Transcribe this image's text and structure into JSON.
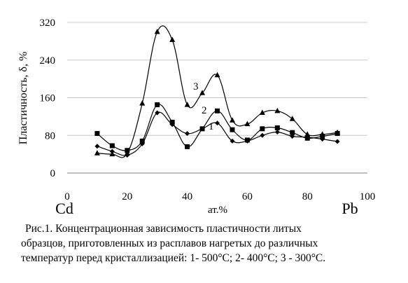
{
  "chart_data": {
    "type": "line",
    "ylabel": "Пластичность, δ, %",
    "xlabel": "ат.%",
    "element_left": "Cd",
    "element_right": "Pb",
    "xlim": [
      0,
      100
    ],
    "ylim": [
      0,
      320
    ],
    "xticks": [
      0,
      20,
      40,
      60,
      80,
      100
    ],
    "yticks": [
      0,
      80,
      160,
      240,
      320
    ],
    "grid": "horizontal",
    "series": [
      {
        "name": "1",
        "marker": "diamond",
        "x": [
          10,
          15,
          20,
          25,
          30,
          35,
          40,
          45,
          50,
          55,
          60,
          65,
          70,
          75,
          80,
          85,
          90
        ],
        "values": [
          57,
          46,
          38,
          62,
          128,
          103,
          84,
          94,
          106,
          68,
          68,
          80,
          87,
          78,
          76,
          72,
          67
        ]
      },
      {
        "name": "2",
        "marker": "square",
        "x": [
          10,
          15,
          20,
          25,
          30,
          35,
          40,
          45,
          50,
          55,
          60,
          65,
          70,
          75,
          80,
          85,
          90
        ],
        "values": [
          84,
          58,
          48,
          68,
          145,
          108,
          56,
          94,
          132,
          92,
          70,
          94,
          96,
          86,
          74,
          78,
          84
        ]
      },
      {
        "name": "3",
        "marker": "triangle",
        "x": [
          10,
          15,
          20,
          25,
          30,
          35,
          40,
          45,
          50,
          55,
          60,
          65,
          70,
          75,
          80,
          85,
          90
        ],
        "values": [
          42,
          40,
          42,
          148,
          300,
          283,
          145,
          170,
          208,
          112,
          104,
          128,
          132,
          115,
          82,
          82,
          86
        ]
      }
    ]
  },
  "caption": {
    "line1": "Рис.1.  Концентрационная зависимость пластичности литых",
    "line2": "образцов, приготовленных из расплавов нагретых до различных",
    "line3": "температур перед кристаллизацией: 1- 500°C; 2- 400°C; 3 - 300°C."
  }
}
